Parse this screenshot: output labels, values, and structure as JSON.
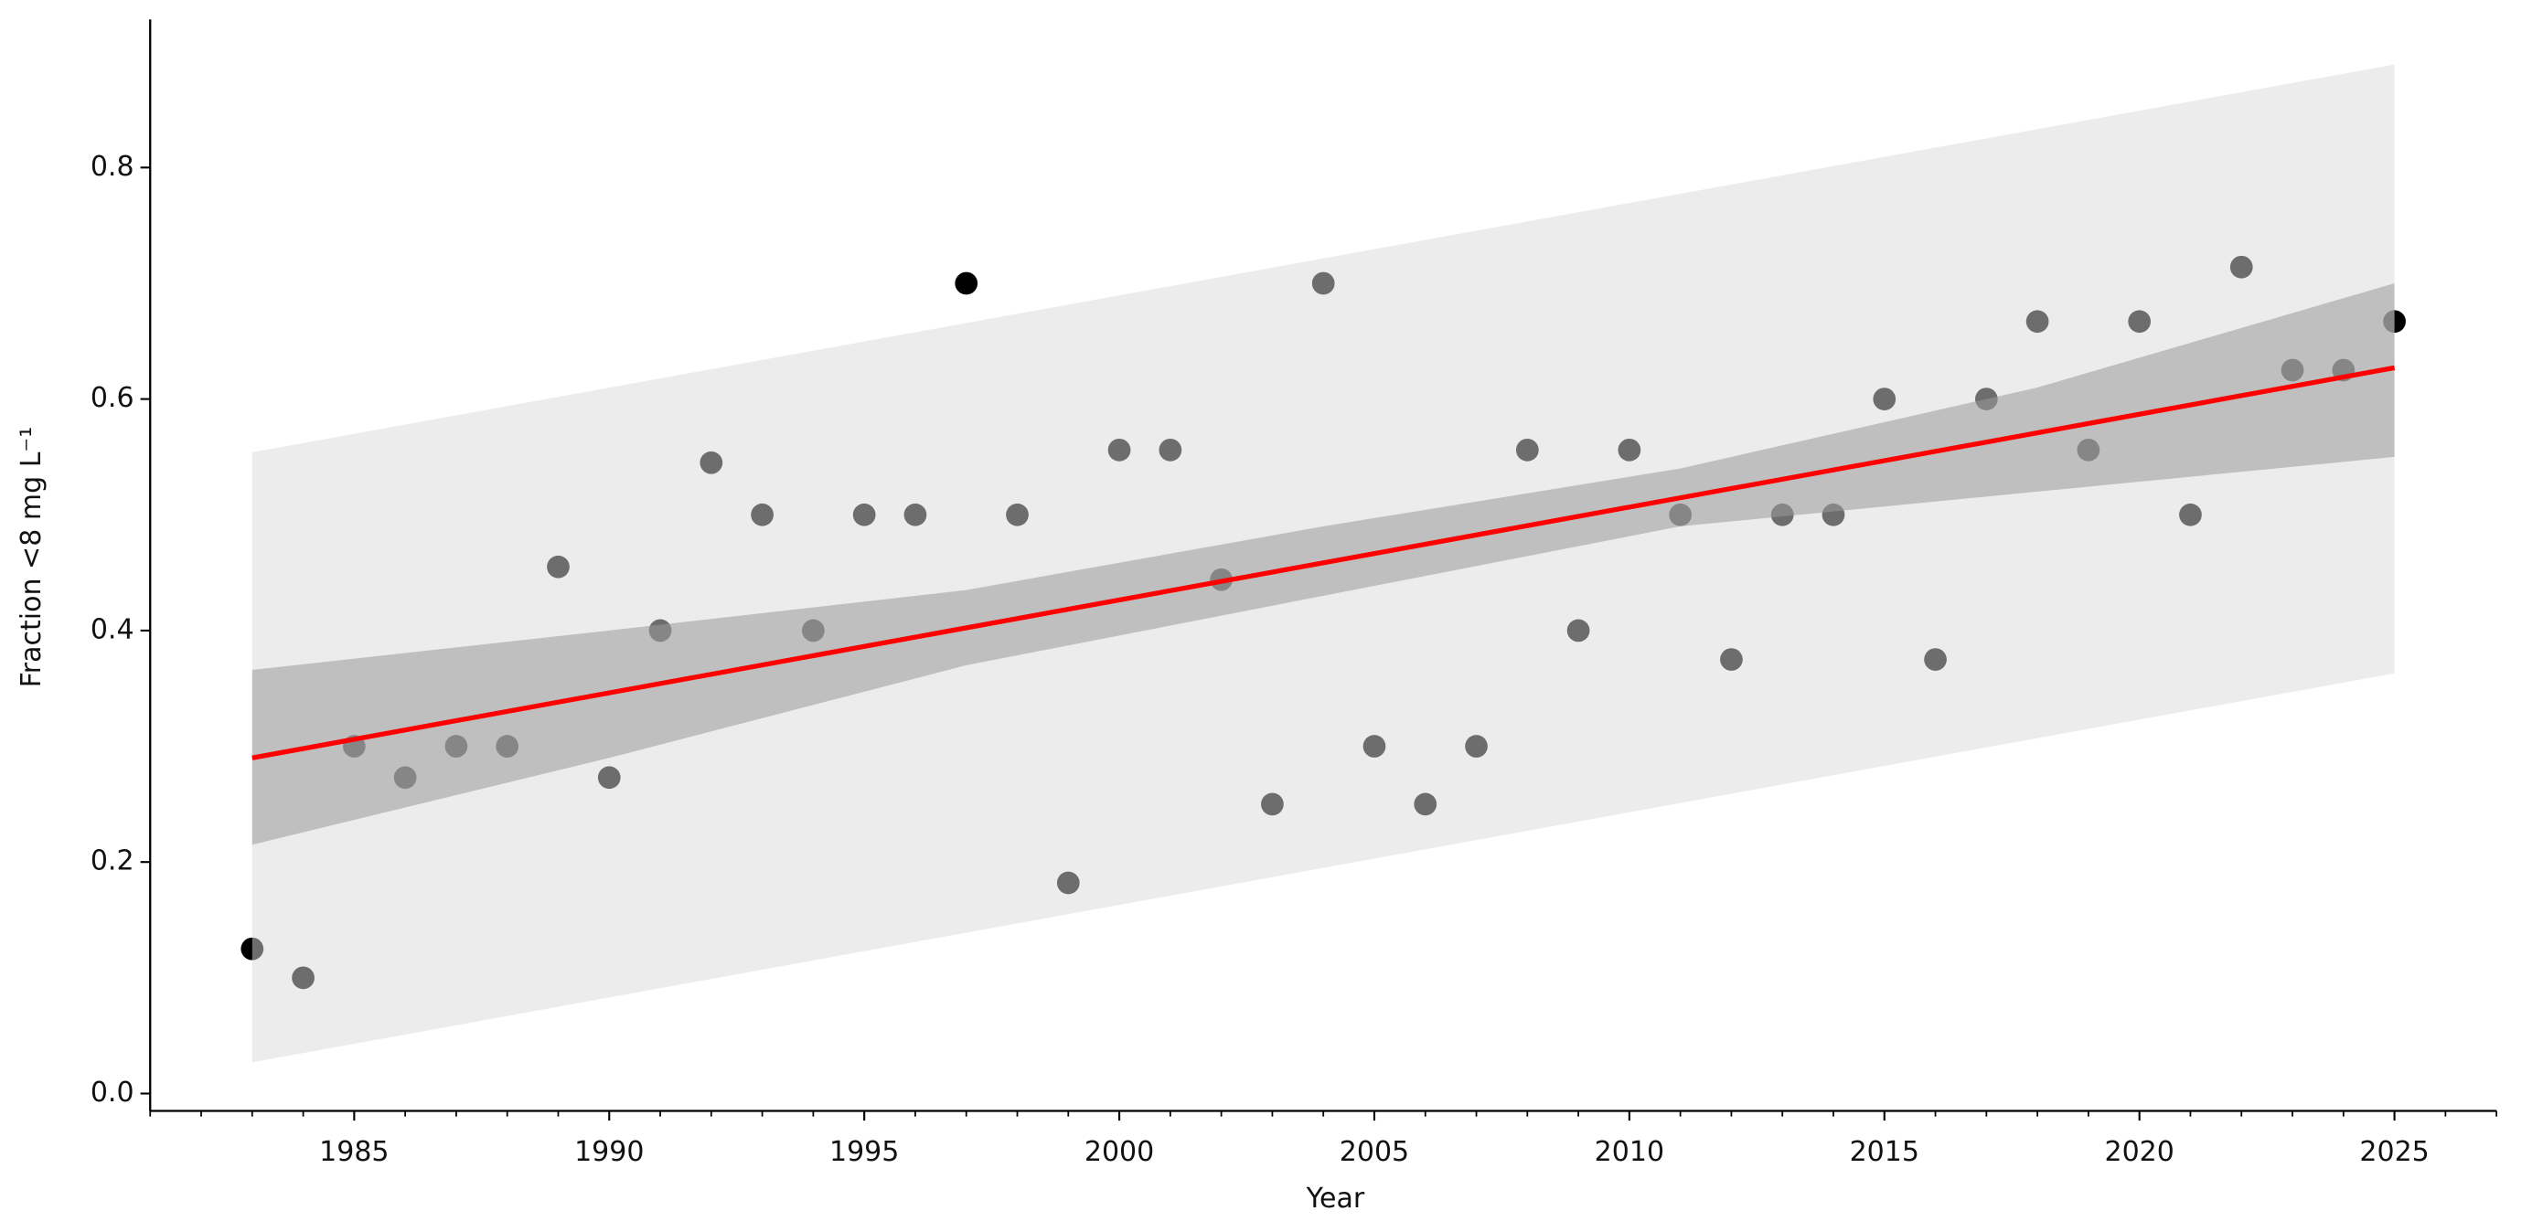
{
  "chart_data": {
    "type": "scatter",
    "xlabel": "Year",
    "ylabel": "Fraction <8 mg L⁻¹",
    "xlim": [
      1981,
      2027
    ],
    "ylim": [
      -0.015,
      0.928
    ],
    "xticks": [
      1985,
      1990,
      1995,
      2000,
      2005,
      2010,
      2015,
      2020,
      2025
    ],
    "xminorticks": [
      1981,
      1982,
      1983,
      1984,
      1986,
      1987,
      1988,
      1989,
      1991,
      1992,
      1993,
      1994,
      1996,
      1997,
      1998,
      1999,
      2001,
      2002,
      2003,
      2004,
      2006,
      2007,
      2008,
      2009,
      2011,
      2012,
      2013,
      2014,
      2016,
      2017,
      2018,
      2019,
      2021,
      2022,
      2023,
      2024,
      2026,
      2027
    ],
    "yticks": [
      {
        "value": 0,
        "label": "0.0"
      },
      0.2,
      0.4,
      0.6,
      0.8
    ],
    "points": {
      "color": "#000000",
      "x": [
        1983,
        1984,
        1985,
        1986,
        1987,
        1988,
        1989,
        1990,
        1991,
        1992,
        1993,
        1994,
        1995,
        1996,
        1997,
        1998,
        1999,
        2000,
        2001,
        2002,
        2003,
        2004,
        2005,
        2006,
        2007,
        2008,
        2009,
        2010,
        2011,
        2012,
        2013,
        2014,
        2015,
        2016,
        2017,
        2018,
        2019,
        2020,
        2021,
        2022,
        2023,
        2024,
        2025
      ],
      "values": [
        0.125,
        0.1,
        0.3,
        0.273,
        0.3,
        0.3,
        0.455,
        0.273,
        0.4,
        0.545,
        0.5,
        0.4,
        0.5,
        0.5,
        0.7,
        0.5,
        0.182,
        0.556,
        0.556,
        0.444,
        0.25,
        0.7,
        0.3,
        0.25,
        0.3,
        0.556,
        0.4,
        0.556,
        0.5,
        0.375,
        0.5,
        0.5,
        0.6,
        0.375,
        0.6,
        0.667,
        0.556,
        0.667,
        0.5,
        0.714,
        0.625,
        0.625,
        0.667
      ]
    },
    "prediction_band": {
      "color": "#d9d9d9",
      "x": [
        1983,
        2025
      ],
      "lower": [
        0.027,
        0.363
      ],
      "upper": [
        0.554,
        0.889
      ]
    },
    "confidence_band": {
      "color": "#9a9a9a",
      "x": [
        1983,
        1990,
        1997,
        2004,
        2011,
        2018,
        2025
      ],
      "lower": [
        0.215,
        0.29,
        0.37,
        0.43,
        0.49,
        0.52,
        0.55
      ],
      "upper": [
        0.366,
        0.4,
        0.435,
        0.49,
        0.54,
        0.61,
        0.7
      ]
    },
    "fit": {
      "color": "#ff0000",
      "x": [
        1983,
        2025
      ],
      "values": [
        0.29,
        0.627
      ]
    }
  }
}
